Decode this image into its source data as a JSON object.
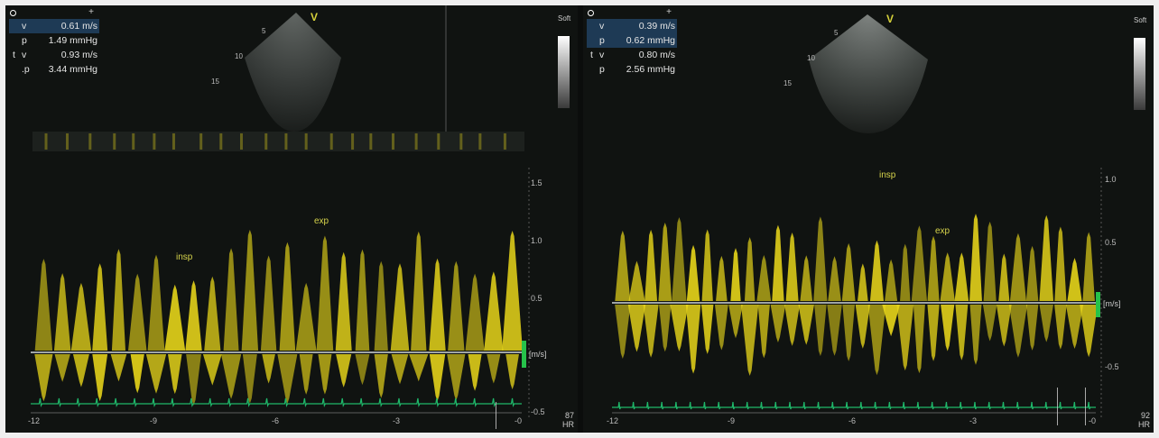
{
  "left": {
    "measurements": [
      {
        "prefix": "",
        "label": "v",
        "value": "0.61 m/s",
        "highlight": true
      },
      {
        "prefix": "",
        "label": "p",
        "value": "1.49 mmHg",
        "highlight": false
      },
      {
        "prefix": "t",
        "label": "v",
        "value": "0.93 m/s",
        "highlight": false
      },
      {
        "prefix": "",
        "label": ".p",
        "value": "3.44 mmHg",
        "highlight": false
      }
    ],
    "vmark": "V",
    "depths": [
      "5",
      "10",
      "15"
    ],
    "soft_label": "Soft",
    "scale_labels": [
      "1.5",
      "1.0",
      "0.5",
      "-0.5"
    ],
    "unit": "[m/s]",
    "time_ticks": [
      "-12",
      "-9",
      "-6",
      "-3",
      "-0"
    ],
    "annotations": {
      "insp": "insp",
      "exp": "exp"
    },
    "hr_value": "87",
    "hr_label": "HR"
  },
  "right": {
    "measurements": [
      {
        "prefix": "",
        "label": "v",
        "value": "0.39 m/s",
        "highlight": true
      },
      {
        "prefix": "",
        "label": "p",
        "value": "0.62 mmHg",
        "highlight": true
      },
      {
        "prefix": "t",
        "label": "v",
        "value": "0.80 m/s",
        "highlight": false
      },
      {
        "prefix": "",
        "label": "p",
        "value": "2.56 mmHg",
        "highlight": false
      }
    ],
    "vmark": "V",
    "depths": [
      "5",
      "10",
      "15"
    ],
    "soft_label": "Soft",
    "scale_labels": [
      "1.0",
      "0.5",
      "-0.5"
    ],
    "unit": "[m/s]",
    "time_ticks": [
      "-12",
      "-9",
      "-6",
      "-3",
      "-0"
    ],
    "annotations": {
      "insp": "insp",
      "exp": "exp"
    },
    "hr_value": "92",
    "hr_label": "HR"
  },
  "colors": {
    "doppler": "#e8d61a",
    "ecg": "#1fb86a",
    "baseline": "#cfd6d8",
    "bar": "#26c24a"
  }
}
